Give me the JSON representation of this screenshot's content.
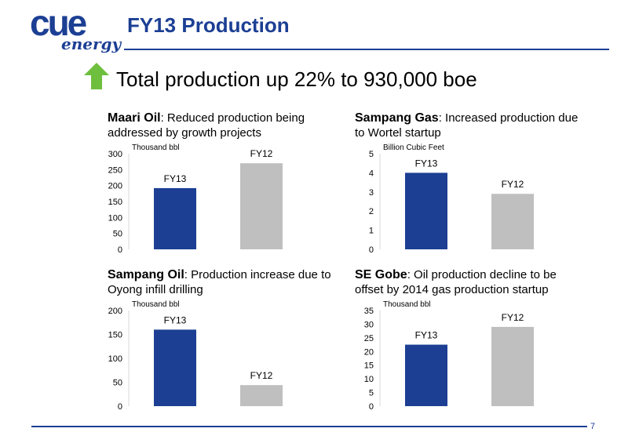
{
  "header": {
    "logo_main": "CUE",
    "logo_sub": "energy",
    "title": "FY13 Production"
  },
  "headline": "Total production up 22% to 930,000 boe",
  "colors": {
    "fy13": "#1c3f94",
    "fy12": "#bfbfbf",
    "accent": "#1c3f94",
    "arrow": "#6fbf3f"
  },
  "panels": [
    {
      "heading": "Maari Oil",
      "text": ": Reduced production being addressed by growth projects"
    },
    {
      "heading": "Sampang Gas",
      "text": ": Increased production due to Wortel startup"
    },
    {
      "heading": "Sampang Oil",
      "text": ": Production increase due to Oyong infill drilling"
    },
    {
      "heading": "SE Gobe",
      "text": ": Oil production decline to be offset by 2014 gas production startup"
    }
  ],
  "chart_data": [
    {
      "type": "bar",
      "unit_label": "Thousand bbl",
      "categories": [
        "FY13",
        "FY12"
      ],
      "values": [
        192,
        270
      ],
      "ylim": [
        0,
        300
      ],
      "yticks": [
        0,
        50,
        100,
        150,
        200,
        250,
        300
      ]
    },
    {
      "type": "bar",
      "unit_label": "Billion Cubic Feet",
      "categories": [
        "FY13",
        "FY12"
      ],
      "values": [
        4.0,
        2.9
      ],
      "ylim": [
        0,
        5
      ],
      "yticks": [
        0,
        1,
        2,
        3,
        4,
        5
      ]
    },
    {
      "type": "bar",
      "unit_label": "Thousand bbl",
      "categories": [
        "FY13",
        "FY12"
      ],
      "values": [
        160,
        44
      ],
      "ylim": [
        0,
        200
      ],
      "yticks": [
        0,
        50,
        100,
        150,
        200
      ]
    },
    {
      "type": "bar",
      "unit_label": "Thousand bbl",
      "categories": [
        "FY13",
        "FY12"
      ],
      "values": [
        22.5,
        29
      ],
      "ylim": [
        0,
        35
      ],
      "yticks": [
        0,
        5,
        10,
        15,
        20,
        25,
        30,
        35
      ]
    }
  ],
  "page_number": "7"
}
